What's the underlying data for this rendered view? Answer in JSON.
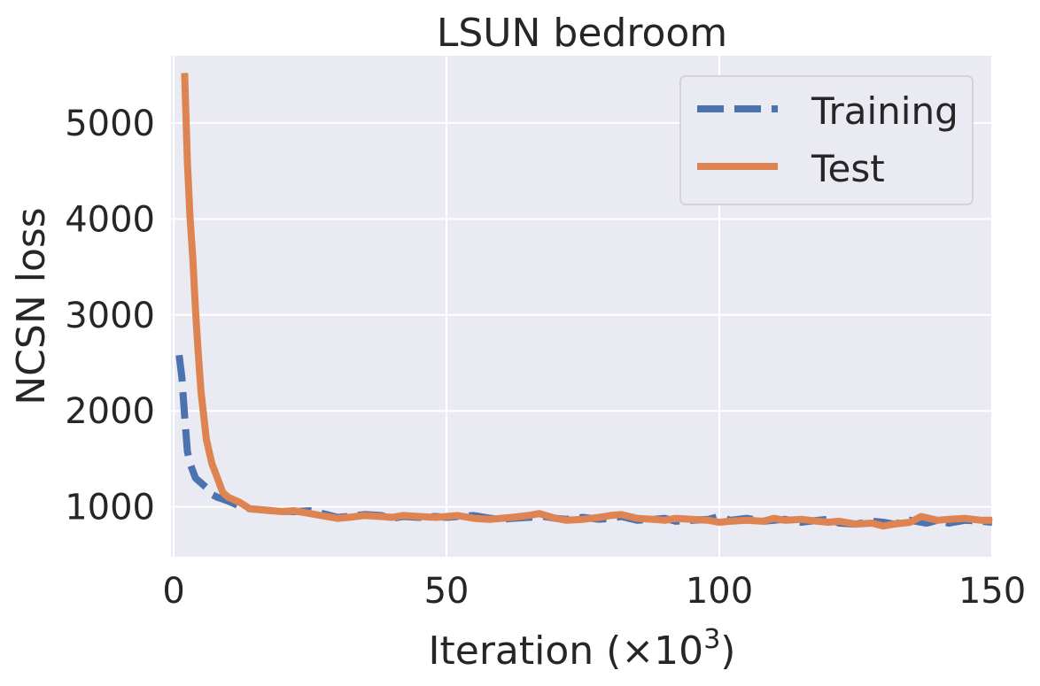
{
  "chart_data": {
    "type": "line",
    "title": "LSUN bedroom",
    "xlabel": "Iteration (×10",
    "xlabel_sup": "3",
    "xlabel_close": ")",
    "ylabel": "NCSN loss",
    "xlim": [
      -0.5,
      150
    ],
    "ylim": [
      480,
      5700
    ],
    "xticks": [
      0,
      50,
      100,
      150
    ],
    "xtick_labels": [
      "0",
      "50",
      "100",
      "150"
    ],
    "yticks": [
      1000,
      2000,
      3000,
      4000,
      5000
    ],
    "ytick_labels": [
      "1000",
      "2000",
      "3000",
      "4000",
      "5000"
    ],
    "grid": true,
    "background": "#eaeaf2",
    "legend_position": "top-right",
    "series": [
      {
        "name": "Training",
        "color": "#4c72b0",
        "style": "dashed",
        "x": [
          1,
          1.5,
          2,
          2.5,
          3,
          4,
          5,
          6,
          7,
          8,
          9,
          10,
          12,
          14,
          16,
          18,
          20,
          22,
          25,
          28,
          30,
          32,
          35,
          38,
          40,
          42,
          45,
          48,
          50,
          52,
          55,
          58,
          60,
          62,
          65,
          68,
          70,
          72,
          75,
          78,
          80,
          82,
          85,
          88,
          90,
          92,
          95,
          98,
          100,
          102,
          105,
          108,
          110,
          112,
          115,
          118,
          120,
          122,
          125,
          128,
          130,
          132,
          135,
          138,
          140,
          142,
          145,
          148,
          150
        ],
        "values": [
          2580,
          2350,
          1950,
          1580,
          1450,
          1300,
          1250,
          1200,
          1130,
          1100,
          1080,
          1060,
          1010,
          980,
          970,
          960,
          955,
          950,
          960,
          920,
          890,
          900,
          920,
          910,
          880,
          900,
          890,
          900,
          890,
          900,
          910,
          880,
          870,
          880,
          890,
          900,
          880,
          870,
          890,
          870,
          880,
          900,
          860,
          870,
          880,
          850,
          860,
          870,
          900,
          860,
          880,
          850,
          860,
          870,
          840,
          860,
          870,
          830,
          820,
          850,
          840,
          820,
          860,
          830,
          860,
          830,
          860,
          850,
          840
        ]
      },
      {
        "name": "Test",
        "color": "#dd8452",
        "style": "solid",
        "x": [
          2,
          2.5,
          3,
          3.5,
          4,
          4.5,
          5,
          6,
          7,
          8,
          9,
          10,
          12,
          14,
          16,
          18,
          20,
          22,
          25,
          28,
          30,
          32,
          35,
          38,
          40,
          42,
          45,
          48,
          50,
          52,
          55,
          58,
          60,
          62,
          65,
          67,
          70,
          72,
          75,
          78,
          80,
          82,
          85,
          88,
          90,
          92,
          95,
          98,
          100,
          102,
          105,
          108,
          110,
          112,
          115,
          118,
          120,
          122,
          125,
          128,
          130,
          132,
          135,
          137,
          140,
          142,
          145,
          148,
          150
        ],
        "values": [
          5520,
          4600,
          4000,
          3600,
          3050,
          2600,
          2200,
          1700,
          1450,
          1300,
          1150,
          1100,
          1050,
          980,
          970,
          960,
          950,
          960,
          930,
          900,
          880,
          890,
          910,
          900,
          890,
          910,
          900,
          890,
          900,
          910,
          880,
          870,
          880,
          890,
          910,
          930,
          880,
          860,
          870,
          890,
          910,
          920,
          880,
          870,
          860,
          880,
          870,
          860,
          840,
          850,
          860,
          850,
          880,
          860,
          870,
          850,
          840,
          850,
          820,
          830,
          800,
          820,
          840,
          900,
          860,
          870,
          880,
          860,
          860
        ]
      }
    ]
  }
}
